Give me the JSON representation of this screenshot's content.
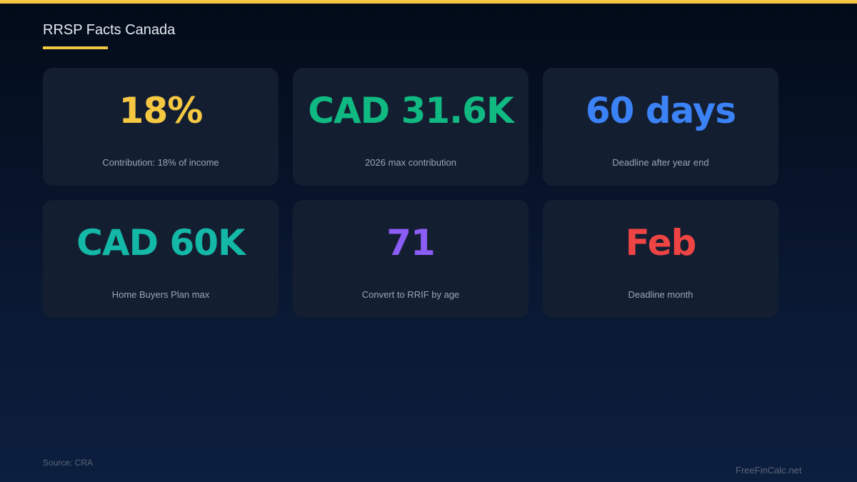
{
  "title": "RRSP Facts Canada",
  "cards": [
    {
      "value": "18%",
      "label": "Contribution: 18% of income",
      "color": "#f5c842"
    },
    {
      "value": "CAD 31.6K",
      "label": "2026 max contribution",
      "color": "#10b981"
    },
    {
      "value": "60 days",
      "label": "Deadline after year end",
      "color": "#3b82f6"
    },
    {
      "value": "CAD 60K",
      "label": "Home Buyers Plan max",
      "color": "#14b8a6"
    },
    {
      "value": "71",
      "label": "Convert to RRIF by age",
      "color": "#8b5cf6"
    },
    {
      "value": "Feb",
      "label": "Deadline month",
      "color": "#ef4444"
    }
  ],
  "source": "Source: CRA",
  "brand": "FreeFinCalc.net"
}
